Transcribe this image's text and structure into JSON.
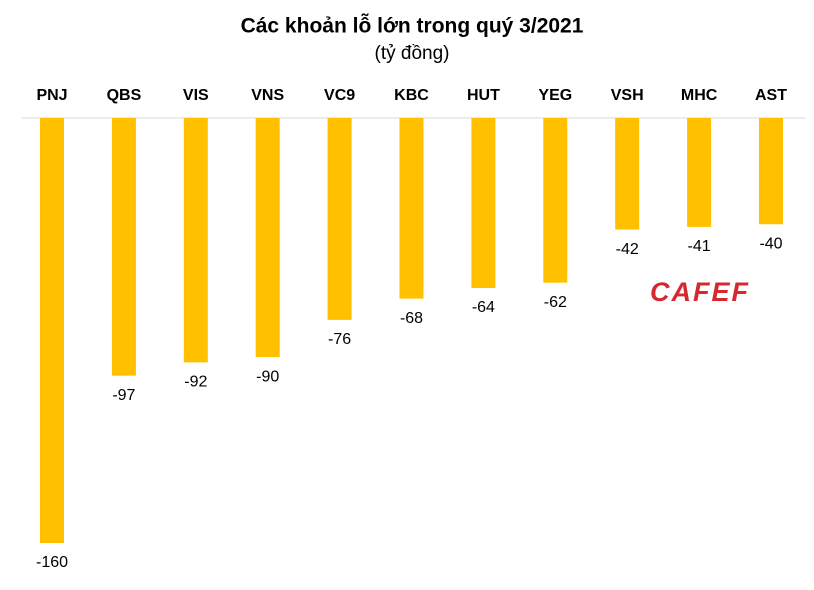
{
  "chart_data": {
    "type": "bar",
    "title": "Các khoản lỗ lớn trong quý 3/2021",
    "subtitle": "(tỷ đồng)",
    "categories": [
      "PNJ",
      "QBS",
      "VIS",
      "VNS",
      "VC9",
      "KBC",
      "HUT",
      "YEG",
      "VSH",
      "MHC",
      "AST"
    ],
    "values": [
      -160,
      -97,
      -92,
      -90,
      -76,
      -68,
      -64,
      -62,
      -42,
      -41,
      -40
    ],
    "color": "#ffc000",
    "watermark": "CAFEF"
  }
}
